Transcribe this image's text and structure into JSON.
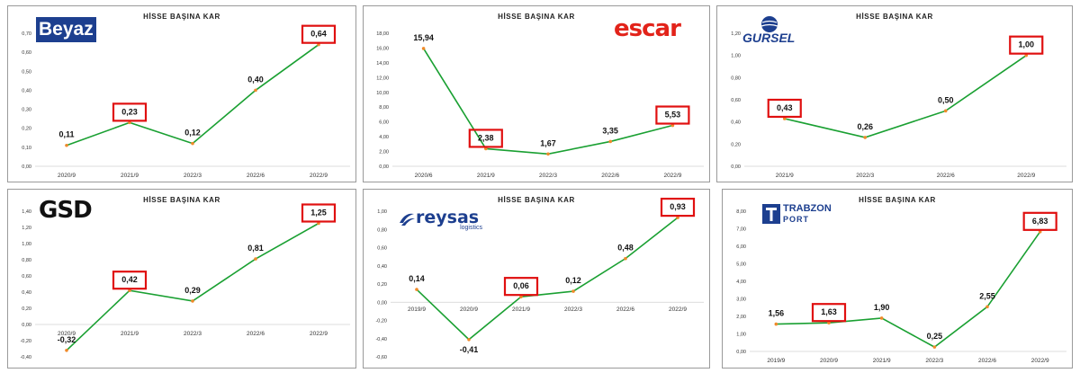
{
  "chart_data": [
    {
      "type": "line",
      "title": "HİSSE BAŞINA KAR",
      "logo": "Beyaz",
      "categories": [
        "2020/9",
        "2021/9",
        "2022/3",
        "2022/6",
        "2022/9"
      ],
      "values": [
        0.11,
        0.23,
        0.12,
        0.4,
        0.64
      ],
      "labels": [
        "0,11",
        "0,23",
        "0,12",
        "0,40",
        "0,64"
      ],
      "highlighted": [
        1,
        4
      ],
      "ylim": [
        0,
        0.7
      ],
      "yticks": [
        "0,00",
        "0,10",
        "0,20",
        "0,30",
        "0,40",
        "0,50",
        "0,60",
        "0,70"
      ],
      "line_color": "#1aa032",
      "marker_color": "#f08a2a",
      "highlight_color": "#e01010"
    },
    {
      "type": "line",
      "title": "HİSSE BAŞINA KAR",
      "logo": "escar",
      "categories": [
        "2020/6",
        "2021/9",
        "2022/3",
        "2022/6",
        "2022/9"
      ],
      "values": [
        15.94,
        2.38,
        1.67,
        3.35,
        5.53
      ],
      "labels": [
        "15,94",
        "2,38",
        "1,67",
        "3,35",
        "5,53"
      ],
      "highlighted": [
        1,
        4
      ],
      "ylim": [
        0,
        18
      ],
      "yticks": [
        "0,00",
        "2,00",
        "4,00",
        "6,00",
        "8,00",
        "10,00",
        "12,00",
        "14,00",
        "16,00",
        "18,00"
      ],
      "line_color": "#1aa032",
      "marker_color": "#f08a2a",
      "highlight_color": "#e01010"
    },
    {
      "type": "line",
      "title": "HİSSE BAŞINA KAR",
      "logo": "GURSEL",
      "categories": [
        "2021/9",
        "2022/3",
        "2022/6",
        "2022/9"
      ],
      "values": [
        0.43,
        0.26,
        0.5,
        1.0
      ],
      "labels": [
        "0,43",
        "0,26",
        "0,50",
        "1,00"
      ],
      "highlighted": [
        0,
        3
      ],
      "ylim": [
        0,
        1.2
      ],
      "yticks": [
        "0,00",
        "0,20",
        "0,40",
        "0,60",
        "0,80",
        "1,00",
        "1,20"
      ],
      "line_color": "#1aa032",
      "marker_color": "#f08a2a",
      "highlight_color": "#e01010"
    },
    {
      "type": "line",
      "title": "HİSSE BAŞINA KAR",
      "logo": "GSD",
      "categories": [
        "2020/9",
        "2021/9",
        "2022/3",
        "2022/6",
        "2022/9"
      ],
      "values": [
        -0.32,
        0.42,
        0.29,
        0.81,
        1.25
      ],
      "labels": [
        "-0,32",
        "0,42",
        "0,29",
        "0,81",
        "1,25"
      ],
      "highlighted": [
        1,
        4
      ],
      "ylim": [
        -0.4,
        1.4
      ],
      "yticks": [
        "-0,40",
        "-0,20",
        "0,00",
        "0,20",
        "0,40",
        "0,60",
        "0,80",
        "1,00",
        "1,20",
        "1,40"
      ],
      "line_color": "#1aa032",
      "marker_color": "#f08a2a",
      "highlight_color": "#e01010"
    },
    {
      "type": "line",
      "title": "HİSSE BAŞINA KAR",
      "logo": "reysas",
      "logo_sub": "logistics",
      "categories": [
        "2019/9",
        "2020/9",
        "2021/9",
        "2022/3",
        "2022/6",
        "2022/9"
      ],
      "values": [
        0.14,
        -0.41,
        0.06,
        0.12,
        0.48,
        0.93
      ],
      "labels": [
        "0,14",
        "-0,41",
        "0,06",
        "0,12",
        "0,48",
        "0,93"
      ],
      "highlighted": [
        2,
        5
      ],
      "ylim": [
        -0.6,
        1.0
      ],
      "yticks": [
        "-0,60",
        "-0,40",
        "-0,20",
        "0,00",
        "0,20",
        "0,40",
        "0,60",
        "0,80",
        "1,00"
      ],
      "line_color": "#1aa032",
      "marker_color": "#f08a2a",
      "highlight_color": "#e01010"
    },
    {
      "type": "line",
      "title": "HİSSE BAŞINA KAR",
      "logo": "TRABZON",
      "logo_sub": "PORT",
      "categories": [
        "2019/9",
        "2020/9",
        "2021/9",
        "2022/3",
        "2022/6",
        "2022/9"
      ],
      "values": [
        1.56,
        1.63,
        1.9,
        0.25,
        2.55,
        6.83
      ],
      "labels": [
        "1,56",
        "1,63",
        "1,90",
        "0,25",
        "2,55",
        "6,83"
      ],
      "highlighted": [
        1,
        5
      ],
      "ylim": [
        0,
        8
      ],
      "yticks": [
        "0,00",
        "1,00",
        "2,00",
        "3,00",
        "4,00",
        "5,00",
        "6,00",
        "7,00",
        "8,00"
      ],
      "line_color": "#1aa032",
      "marker_color": "#f08a2a",
      "highlight_color": "#e01010"
    }
  ]
}
